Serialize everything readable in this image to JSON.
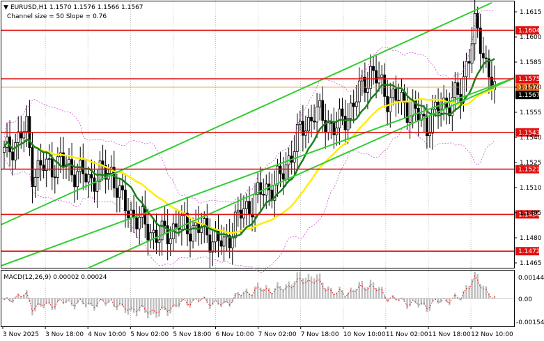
{
  "header": {
    "symbol_line": "EURUSD,H1  1.1570 1.1576 1.1566 1.1567",
    "channel_line": "Channel size = 50 Slope = 0.76"
  },
  "macd": {
    "label": "MACD(12,26,9) 0.00002 0.00024",
    "axis": [
      "0.00144",
      "0.00",
      "-0.00154"
    ]
  },
  "price_axis": {
    "ticks": [
      "1.1615",
      "1.1600",
      "1.1585",
      "1.1570",
      "1.1555",
      "1.1540",
      "1.1525",
      "1.1510",
      "1.1495",
      "1.1480",
      "1.1465"
    ]
  },
  "levels": [
    {
      "label": "1.1604",
      "price": 1.1604
    },
    {
      "label": "1.1575",
      "price": 1.1575
    },
    {
      "label": "1.1543",
      "price": 1.1543
    },
    {
      "label": "1.1521",
      "price": 1.1521
    },
    {
      "label": "1.1494",
      "price": 1.1494
    },
    {
      "label": "1.1472",
      "price": 1.1472
    }
  ],
  "current_price": {
    "label": "1.1567",
    "price": 1.1567
  },
  "orange_tag": {
    "label": "1.1570",
    "price": 1.157
  },
  "time_axis": [
    "3 Nov 2025",
    "3 Nov 18:00",
    "4 Nov 10:00",
    "5 Nov 02:00",
    "5 Nov 18:00",
    "6 Nov 10:00",
    "7 Nov 02:00",
    "7 Nov 18:00",
    "10 Nov 10:00",
    "11 Nov 02:00",
    "11 Nov 18:00",
    "12 Nov 10:00"
  ],
  "colors": {
    "level_line": "#e11111",
    "channel": "#32cd32",
    "ma_fast": "#1a7f1a",
    "ma_slow": "#ffee00",
    "bollinger": "#c040c0",
    "candles": "#000000",
    "macd_hist": "#bdbdbd",
    "macd_signal": "#e11111"
  }
}
